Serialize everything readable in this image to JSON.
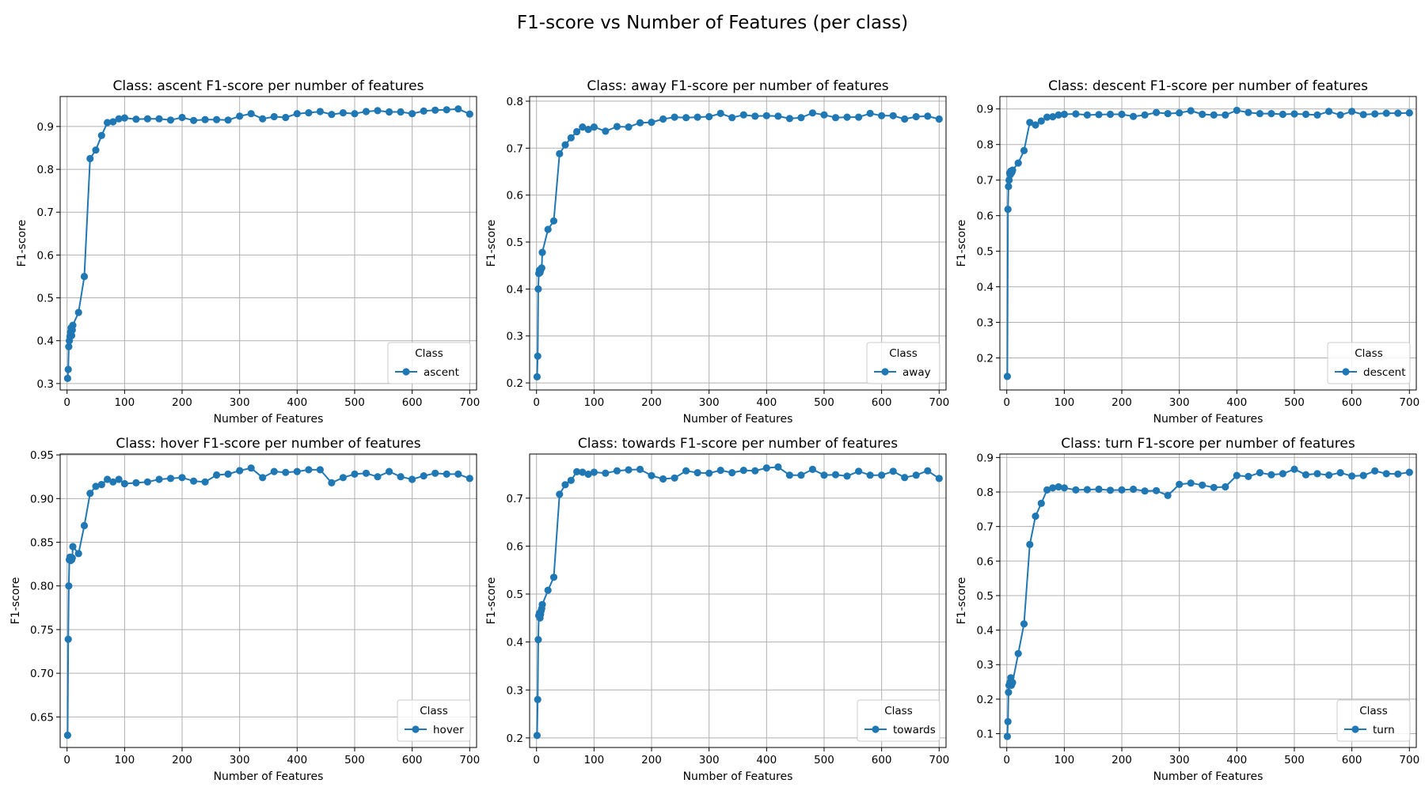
{
  "figure": {
    "suptitle": "F1-score vs Number of Features (per class)"
  },
  "chart_data": [
    {
      "type": "line",
      "title": "Class: ascent F1-score per number of features",
      "xlabel": "Number of Features",
      "ylabel": "F1-score",
      "xlim": [
        -12,
        712
      ],
      "ylim": [
        0.285,
        0.97
      ],
      "xticks": [
        0,
        100,
        200,
        300,
        400,
        500,
        600,
        700
      ],
      "yticks": [
        0.3,
        0.4,
        0.5,
        0.6,
        0.7,
        0.8,
        0.9
      ],
      "ytick_labels": [
        "0.3",
        "0.4",
        "0.5",
        "0.6",
        "0.7",
        "0.8",
        "0.9"
      ],
      "grid": true,
      "legend": {
        "title": "Class",
        "placement": "lower right"
      },
      "series": [
        {
          "name": "ascent",
          "color": "#1f77b4",
          "x": [
            1,
            2,
            3,
            4,
            5,
            6,
            7,
            8,
            9,
            10,
            20,
            30,
            40,
            50,
            60,
            70,
            80,
            90,
            100,
            120,
            140,
            160,
            180,
            200,
            220,
            240,
            260,
            280,
            300,
            320,
            340,
            360,
            380,
            400,
            420,
            440,
            460,
            480,
            500,
            520,
            540,
            560,
            580,
            600,
            620,
            640,
            660,
            680,
            700
          ],
          "y": [
            0.312,
            0.333,
            0.386,
            0.4,
            0.41,
            0.42,
            0.43,
            0.412,
            0.425,
            0.436,
            0.466,
            0.55,
            0.825,
            0.845,
            0.879,
            0.909,
            0.911,
            0.918,
            0.92,
            0.917,
            0.918,
            0.918,
            0.915,
            0.921,
            0.914,
            0.916,
            0.916,
            0.915,
            0.924,
            0.93,
            0.918,
            0.923,
            0.921,
            0.93,
            0.932,
            0.935,
            0.928,
            0.932,
            0.93,
            0.935,
            0.937,
            0.934,
            0.934,
            0.93,
            0.936,
            0.938,
            0.939,
            0.941,
            0.929
          ]
        }
      ]
    },
    {
      "type": "line",
      "title": "Class: away F1-score per number of features",
      "xlabel": "Number of Features",
      "ylabel": "F1-score",
      "xlim": [
        -12,
        712
      ],
      "ylim": [
        0.185,
        0.81
      ],
      "xticks": [
        0,
        100,
        200,
        300,
        400,
        500,
        600,
        700
      ],
      "yticks": [
        0.2,
        0.3,
        0.4,
        0.5,
        0.6,
        0.7,
        0.8
      ],
      "ytick_labels": [
        "0.2",
        "0.3",
        "0.4",
        "0.5",
        "0.6",
        "0.7",
        "0.8"
      ],
      "grid": true,
      "legend": {
        "title": "Class",
        "placement": "lower right"
      },
      "series": [
        {
          "name": "away",
          "color": "#1f77b4",
          "x": [
            1,
            2,
            3,
            4,
            5,
            6,
            7,
            8,
            9,
            10,
            20,
            30,
            40,
            50,
            60,
            70,
            80,
            90,
            100,
            120,
            140,
            160,
            180,
            200,
            220,
            240,
            260,
            280,
            300,
            320,
            340,
            360,
            380,
            400,
            420,
            440,
            460,
            480,
            500,
            520,
            540,
            560,
            580,
            600,
            620,
            640,
            660,
            680,
            700
          ],
          "y": [
            0.213,
            0.257,
            0.4,
            0.433,
            0.44,
            0.435,
            0.44,
            0.443,
            0.445,
            0.478,
            0.527,
            0.545,
            0.688,
            0.707,
            0.722,
            0.735,
            0.745,
            0.74,
            0.745,
            0.736,
            0.746,
            0.745,
            0.754,
            0.755,
            0.762,
            0.766,
            0.765,
            0.766,
            0.767,
            0.774,
            0.765,
            0.771,
            0.768,
            0.769,
            0.768,
            0.763,
            0.765,
            0.775,
            0.771,
            0.765,
            0.766,
            0.766,
            0.774,
            0.769,
            0.769,
            0.762,
            0.767,
            0.768,
            0.762
          ]
        }
      ]
    },
    {
      "type": "line",
      "title": "Class: descent F1-score per number of features",
      "xlabel": "Number of Features",
      "ylabel": "F1-score",
      "xlim": [
        -12,
        712
      ],
      "ylim": [
        0.11,
        0.935
      ],
      "xticks": [
        0,
        100,
        200,
        300,
        400,
        500,
        600,
        700
      ],
      "yticks": [
        0.2,
        0.3,
        0.4,
        0.5,
        0.6,
        0.7,
        0.8,
        0.9
      ],
      "ytick_labels": [
        "0.2",
        "0.3",
        "0.4",
        "0.5",
        "0.6",
        "0.7",
        "0.8",
        "0.9"
      ],
      "grid": true,
      "legend": {
        "title": "Class",
        "placement": "lower right"
      },
      "series": [
        {
          "name": "descent",
          "color": "#1f77b4",
          "x": [
            1,
            2,
            3,
            4,
            5,
            6,
            7,
            8,
            9,
            10,
            20,
            30,
            40,
            50,
            60,
            70,
            80,
            90,
            100,
            120,
            140,
            160,
            180,
            200,
            220,
            240,
            260,
            280,
            300,
            320,
            340,
            360,
            380,
            400,
            420,
            440,
            460,
            480,
            500,
            520,
            540,
            560,
            580,
            600,
            620,
            640,
            660,
            680,
            700
          ],
          "y": [
            0.148,
            0.618,
            0.682,
            0.7,
            0.72,
            0.715,
            0.725,
            0.72,
            0.723,
            0.728,
            0.748,
            0.783,
            0.862,
            0.855,
            0.866,
            0.877,
            0.878,
            0.883,
            0.885,
            0.886,
            0.883,
            0.884,
            0.885,
            0.885,
            0.879,
            0.883,
            0.89,
            0.887,
            0.889,
            0.895,
            0.885,
            0.883,
            0.883,
            0.896,
            0.89,
            0.887,
            0.887,
            0.885,
            0.886,
            0.885,
            0.883,
            0.893,
            0.883,
            0.893,
            0.884,
            0.886,
            0.888,
            0.888,
            0.889
          ]
        }
      ]
    },
    {
      "type": "line",
      "title": "Class: hover F1-score per number of features",
      "xlabel": "Number of Features",
      "ylabel": "F1-score",
      "xlim": [
        -12,
        712
      ],
      "ylim": [
        0.615,
        0.951
      ],
      "xticks": [
        0,
        100,
        200,
        300,
        400,
        500,
        600,
        700
      ],
      "yticks": [
        0.65,
        0.7,
        0.75,
        0.8,
        0.85,
        0.9,
        0.95
      ],
      "ytick_labels": [
        "0.65",
        "0.70",
        "0.75",
        "0.80",
        "0.85",
        "0.90",
        "0.95"
      ],
      "grid": true,
      "legend": {
        "title": "Class",
        "placement": "lower right"
      },
      "series": [
        {
          "name": "hover",
          "color": "#1f77b4",
          "x": [
            1,
            2,
            3,
            4,
            5,
            6,
            7,
            8,
            9,
            10,
            20,
            30,
            40,
            50,
            60,
            70,
            80,
            90,
            100,
            120,
            140,
            160,
            180,
            200,
            220,
            240,
            260,
            280,
            300,
            320,
            340,
            360,
            380,
            400,
            420,
            440,
            460,
            480,
            500,
            520,
            540,
            560,
            580,
            600,
            620,
            640,
            660,
            680,
            700
          ],
          "y": [
            0.629,
            0.739,
            0.8,
            0.83,
            0.833,
            0.829,
            0.831,
            0.83,
            0.832,
            0.845,
            0.837,
            0.869,
            0.906,
            0.914,
            0.916,
            0.922,
            0.919,
            0.922,
            0.917,
            0.918,
            0.919,
            0.922,
            0.923,
            0.924,
            0.92,
            0.919,
            0.927,
            0.928,
            0.932,
            0.935,
            0.924,
            0.931,
            0.93,
            0.931,
            0.933,
            0.933,
            0.918,
            0.924,
            0.928,
            0.929,
            0.925,
            0.931,
            0.925,
            0.922,
            0.926,
            0.929,
            0.928,
            0.928,
            0.923
          ]
        }
      ]
    },
    {
      "type": "line",
      "title": "Class: towards F1-score per number of features",
      "xlabel": "Number of Features",
      "ylabel": "F1-score",
      "xlim": [
        -12,
        712
      ],
      "ylim": [
        0.18,
        0.792
      ],
      "xticks": [
        0,
        100,
        200,
        300,
        400,
        500,
        600,
        700
      ],
      "yticks": [
        0.2,
        0.3,
        0.4,
        0.5,
        0.6,
        0.7
      ],
      "ytick_labels": [
        "0.2",
        "0.3",
        "0.4",
        "0.5",
        "0.6",
        "0.7"
      ],
      "grid": true,
      "legend": {
        "title": "Class",
        "placement": "lower right"
      },
      "series": [
        {
          "name": "towards",
          "color": "#1f77b4",
          "x": [
            1,
            2,
            3,
            4,
            5,
            6,
            7,
            8,
            9,
            10,
            20,
            30,
            40,
            50,
            60,
            70,
            80,
            90,
            100,
            120,
            140,
            160,
            180,
            200,
            220,
            240,
            260,
            280,
            300,
            320,
            340,
            360,
            380,
            400,
            420,
            440,
            460,
            480,
            500,
            520,
            540,
            560,
            580,
            600,
            620,
            640,
            660,
            680,
            700
          ],
          "y": [
            0.205,
            0.28,
            0.405,
            0.455,
            0.46,
            0.45,
            0.458,
            0.465,
            0.47,
            0.478,
            0.508,
            0.535,
            0.708,
            0.728,
            0.737,
            0.755,
            0.754,
            0.75,
            0.754,
            0.752,
            0.757,
            0.759,
            0.76,
            0.747,
            0.74,
            0.742,
            0.757,
            0.753,
            0.752,
            0.758,
            0.753,
            0.758,
            0.757,
            0.763,
            0.765,
            0.748,
            0.748,
            0.76,
            0.748,
            0.749,
            0.746,
            0.756,
            0.748,
            0.748,
            0.756,
            0.743,
            0.748,
            0.757,
            0.741
          ]
        }
      ]
    },
    {
      "type": "line",
      "title": "Class: turn F1-score per number of features",
      "xlabel": "Number of Features",
      "ylabel": "F1-score",
      "xlim": [
        -12,
        712
      ],
      "ylim": [
        0.06,
        0.91
      ],
      "xticks": [
        0,
        100,
        200,
        300,
        400,
        500,
        600,
        700
      ],
      "yticks": [
        0.1,
        0.2,
        0.3,
        0.4,
        0.5,
        0.6,
        0.7,
        0.8,
        0.9
      ],
      "ytick_labels": [
        "0.1",
        "0.2",
        "0.3",
        "0.4",
        "0.5",
        "0.6",
        "0.7",
        "0.8",
        "0.9"
      ],
      "grid": true,
      "legend": {
        "title": "Class",
        "placement": "lower right"
      },
      "series": [
        {
          "name": "turn",
          "color": "#1f77b4",
          "x": [
            1,
            2,
            3,
            4,
            5,
            6,
            7,
            8,
            9,
            10,
            20,
            30,
            40,
            50,
            60,
            70,
            80,
            90,
            100,
            120,
            140,
            160,
            180,
            200,
            220,
            240,
            260,
            280,
            300,
            320,
            340,
            360,
            380,
            400,
            420,
            440,
            460,
            480,
            500,
            520,
            540,
            560,
            580,
            600,
            620,
            640,
            660,
            680,
            700
          ],
          "y": [
            0.092,
            0.135,
            0.22,
            0.24,
            0.245,
            0.25,
            0.262,
            0.24,
            0.245,
            0.248,
            0.332,
            0.418,
            0.648,
            0.73,
            0.767,
            0.806,
            0.812,
            0.815,
            0.812,
            0.806,
            0.807,
            0.808,
            0.805,
            0.806,
            0.808,
            0.803,
            0.804,
            0.79,
            0.822,
            0.826,
            0.82,
            0.813,
            0.815,
            0.848,
            0.845,
            0.856,
            0.85,
            0.853,
            0.866,
            0.85,
            0.853,
            0.849,
            0.856,
            0.846,
            0.848,
            0.861,
            0.853,
            0.852,
            0.857
          ]
        }
      ]
    }
  ]
}
